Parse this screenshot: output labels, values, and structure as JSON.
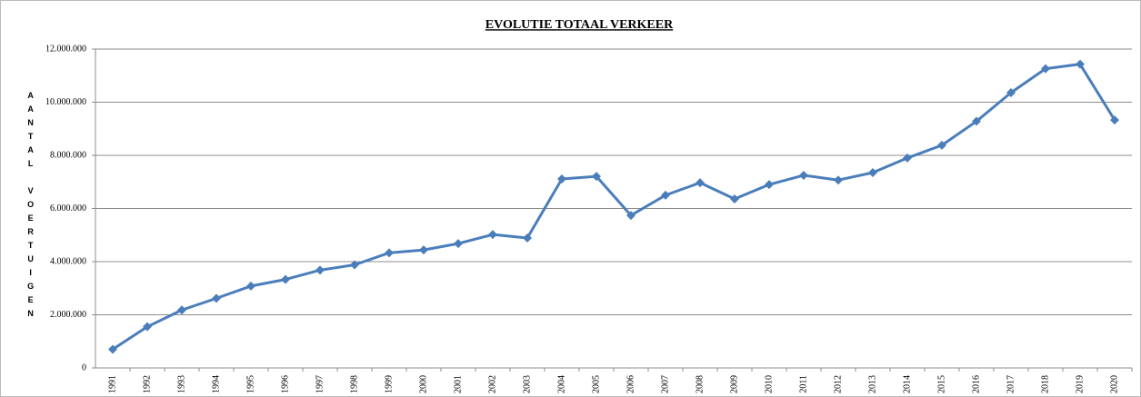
{
  "chart_data": {
    "type": "line",
    "title": "EVOLUTIE TOTAAL VERKEER",
    "y_label": "AANTAL VOERTUIGEN",
    "categories": [
      "1991",
      "1992",
      "1993",
      "1994",
      "1995",
      "1996",
      "1997",
      "1998",
      "1999",
      "2000",
      "2001",
      "2002",
      "2003",
      "2004",
      "2005",
      "2006",
      "2007",
      "2008",
      "2009",
      "2010",
      "2011",
      "2012",
      "2013",
      "2014",
      "2015",
      "2016",
      "2017",
      "2018",
      "2019",
      "2020"
    ],
    "series": [
      {
        "name": "Totaal verkeer",
        "color": "#4a7ebb",
        "values": [
          700000,
          1550000,
          2180000,
          2620000,
          3080000,
          3330000,
          3680000,
          3880000,
          4330000,
          4440000,
          4680000,
          5020000,
          4890000,
          7110000,
          7210000,
          5740000,
          6500000,
          6970000,
          6360000,
          6900000,
          7250000,
          7070000,
          7350000,
          7900000,
          8380000,
          9280000,
          10360000,
          11260000,
          11430000,
          9330000
        ]
      }
    ],
    "ylim": [
      0,
      12000000
    ],
    "yticks": [
      0,
      {
        "value": 2000000,
        "label": "2.000.000"
      },
      {
        "value": 4000000,
        "label": "4.000.000"
      },
      {
        "value": 6000000,
        "label": "6.000.000"
      },
      {
        "value": 8000000,
        "label": "8.000.000"
      },
      {
        "value": 10000000,
        "label": "10.000.000"
      },
      {
        "value": 12000000,
        "label": "12.000.000"
      }
    ],
    "grid": true
  }
}
